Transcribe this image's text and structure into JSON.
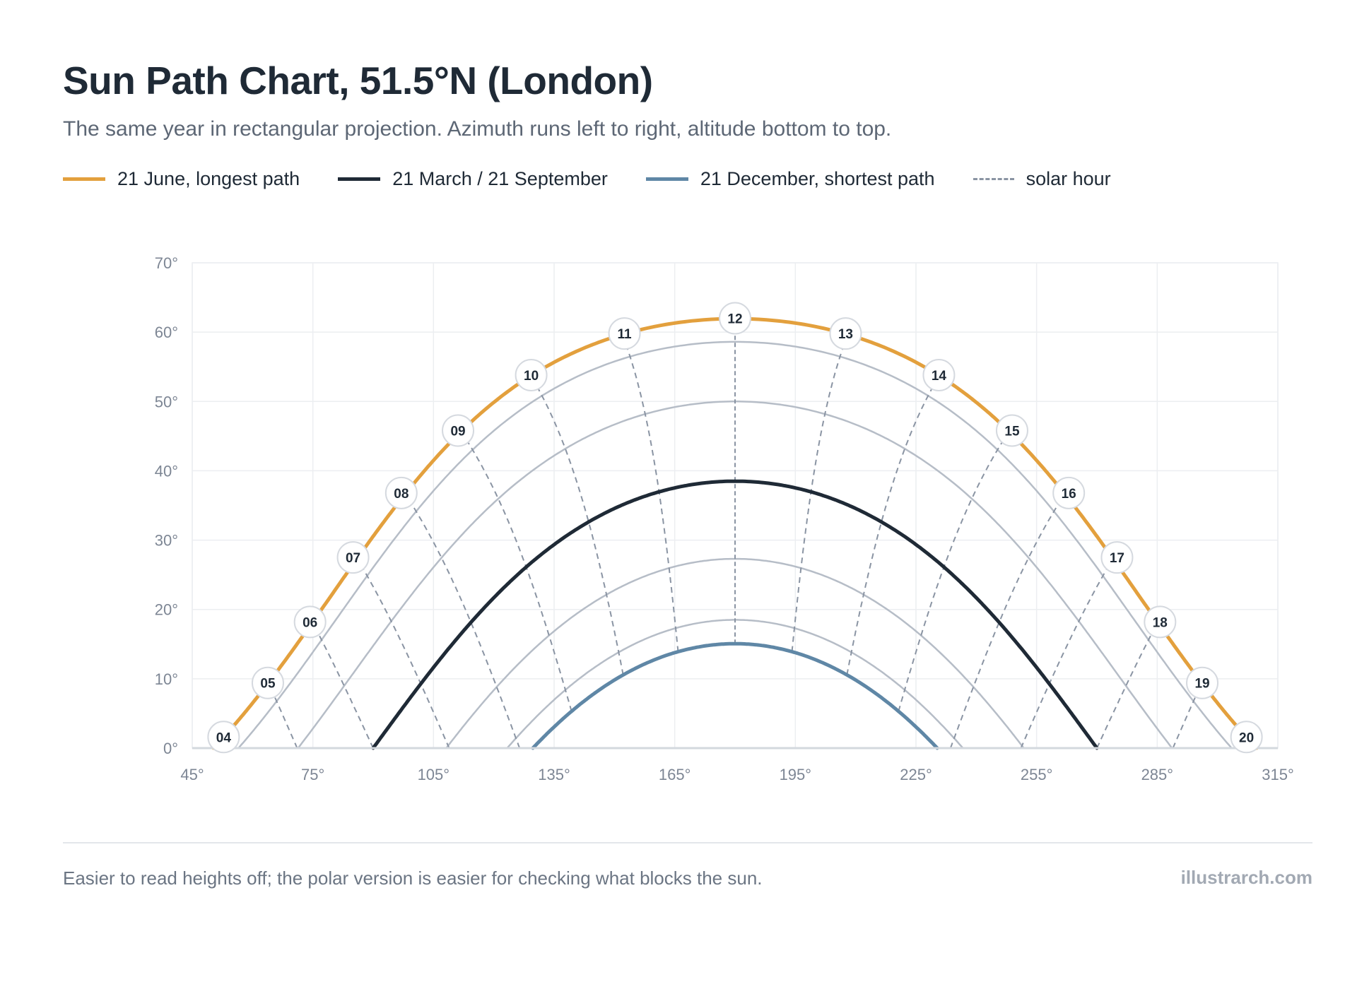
{
  "header": {
    "title": "Sun Path Chart, 51.5°N (London)",
    "subtitle": "The same year in rectangular projection. Azimuth runs left to right, altitude bottom to top."
  },
  "legend": [
    {
      "label": "21 June, longest path",
      "color": "#e3a03d",
      "style": "solid"
    },
    {
      "label": "21 March / 21 September",
      "color": "#1f2a36",
      "style": "solid"
    },
    {
      "label": "21 December, shortest path",
      "color": "#5f87a6",
      "style": "solid"
    },
    {
      "label": "solar hour",
      "color": "#8a94a3",
      "style": "dashed"
    }
  ],
  "footer": {
    "note": "Easier to read heights off; the polar version is easier for checking what blocks the sun.",
    "source": "illustrarch.com"
  },
  "chart_data": {
    "type": "line",
    "xlabel": "",
    "ylabel": "",
    "xlim": [
      45,
      315
    ],
    "ylim": [
      0,
      70
    ],
    "x_ticks": [
      45,
      75,
      105,
      135,
      165,
      195,
      225,
      255,
      285,
      315
    ],
    "y_ticks": [
      0,
      10,
      20,
      30,
      40,
      50,
      60,
      70
    ],
    "x_tick_labels": [
      "45°",
      "75°",
      "105°",
      "135°",
      "165°",
      "195°",
      "225°",
      "255°",
      "285°",
      "315°"
    ],
    "y_tick_labels": [
      "0°",
      "10°",
      "20°",
      "30°",
      "40°",
      "50°",
      "60°",
      "70°"
    ],
    "grid": true,
    "legend_position": "top",
    "latitude_deg": 51.5,
    "series": [
      {
        "name": "21 June, longest path",
        "declination": 23.44,
        "color": "#e3a03d",
        "role": "main",
        "width": 5
      },
      {
        "name": "21 March / 21 September",
        "declination": 0,
        "color": "#1f2a36",
        "role": "main",
        "width": 5
      },
      {
        "name": "21 December, shortest path",
        "declination": -23.44,
        "color": "#5f87a6",
        "role": "main",
        "width": 5
      },
      {
        "name": "",
        "declination": 20.1,
        "color": "#b6bdc7",
        "role": "other",
        "width": 2.5
      },
      {
        "name": "",
        "declination": 11.5,
        "color": "#b6bdc7",
        "role": "other",
        "width": 2.5
      },
      {
        "name": "",
        "declination": -11.2,
        "color": "#b6bdc7",
        "role": "other",
        "width": 2.5
      },
      {
        "name": "",
        "declination": -20.0,
        "color": "#b6bdc7",
        "role": "other",
        "width": 2.5
      }
    ],
    "hour_markers": [
      {
        "label": "04",
        "azimuth": 52.8,
        "altitude": 1.6
      },
      {
        "label": "05",
        "azimuth": 63.8,
        "altitude": 9.4
      },
      {
        "label": "06",
        "azimuth": 74.3,
        "altitude": 18.2
      },
      {
        "label": "07",
        "azimuth": 85.0,
        "altitude": 27.5
      },
      {
        "label": "08",
        "azimuth": 97.0,
        "altitude": 36.8
      },
      {
        "label": "09",
        "azimuth": 111.1,
        "altitude": 45.8
      },
      {
        "label": "10",
        "azimuth": 129.3,
        "altitude": 53.8
      },
      {
        "label": "11",
        "azimuth": 152.5,
        "altitude": 59.8
      },
      {
        "label": "12",
        "azimuth": 180.0,
        "altitude": 62.0
      },
      {
        "label": "13",
        "azimuth": 207.5,
        "altitude": 59.8
      },
      {
        "label": "14",
        "azimuth": 230.7,
        "altitude": 53.8
      },
      {
        "label": "15",
        "azimuth": 248.9,
        "altitude": 45.8
      },
      {
        "label": "16",
        "azimuth": 263.0,
        "altitude": 36.8
      },
      {
        "label": "17",
        "azimuth": 275.0,
        "altitude": 27.5
      },
      {
        "label": "18",
        "azimuth": 285.7,
        "altitude": 18.2
      },
      {
        "label": "19",
        "azimuth": 296.2,
        "altitude": 9.4
      },
      {
        "label": "20",
        "azimuth": 307.2,
        "altitude": 1.6
      }
    ]
  }
}
